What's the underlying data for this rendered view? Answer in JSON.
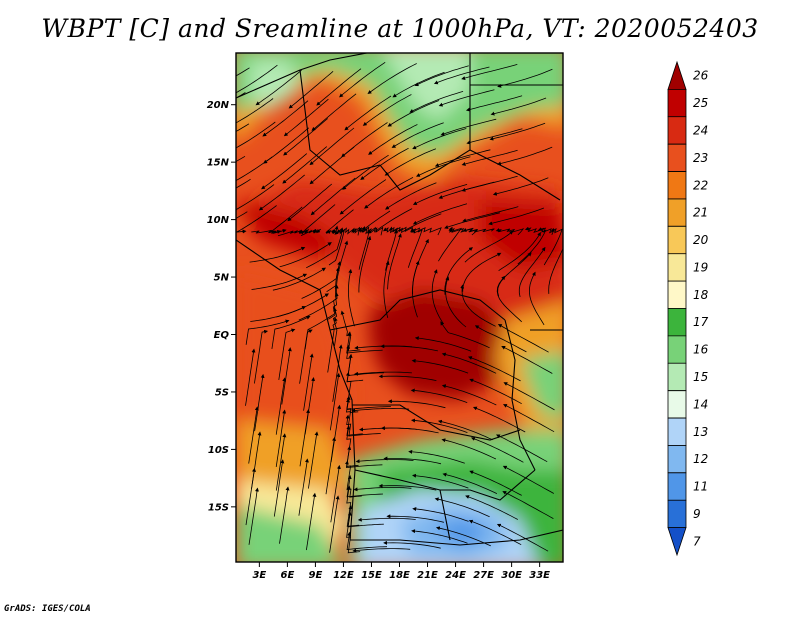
{
  "title": "WBPT [C] and Sreamline at 1000hPa, VT: 2020052403",
  "credit": "GrADS: IGES/COLA",
  "map": {
    "lat_ticks": [
      "20N",
      "15N",
      "10N",
      "5N",
      "EQ",
      "5S",
      "10S",
      "15S"
    ],
    "lat_values": [
      20,
      15,
      10,
      5,
      0,
      -5,
      -10,
      -15
    ],
    "lon_ticks": [
      "3E",
      "6E",
      "9E",
      "12E",
      "15E",
      "18E",
      "21E",
      "24E",
      "27E",
      "30E",
      "33E"
    ],
    "lon_values": [
      3,
      6,
      9,
      12,
      15,
      18,
      21,
      24,
      27,
      30,
      33
    ],
    "lon_range": [
      0.5,
      35.5
    ],
    "lat_range": [
      -19.8,
      24.5
    ]
  },
  "colorbar": {
    "labels": [
      "26",
      "25",
      "24",
      "23",
      "22",
      "21",
      "20",
      "19",
      "18",
      "17",
      "16",
      "15",
      "14",
      "13",
      "12",
      "11",
      "9",
      "7"
    ],
    "colors": [
      "#a00000",
      "#c00000",
      "#d82a12",
      "#e8501e",
      "#f07814",
      "#f0a028",
      "#f8c858",
      "#f8e898",
      "#fff8c8",
      "#3cb43c",
      "#78d278",
      "#b4eab4",
      "#e8fae8",
      "#b0d4f8",
      "#80b8f0",
      "#5096e8",
      "#2870d8",
      "#1450c8"
    ]
  }
}
